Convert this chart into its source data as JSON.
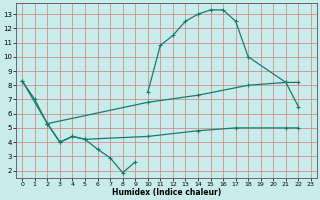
{
  "xlabel": "Humidex (Indice chaleur)",
  "bg_color": "#c8ecea",
  "grid_color": "#d08080",
  "line_color": "#1a7a6e",
  "xlim": [
    -0.5,
    23.5
  ],
  "ylim": [
    1.5,
    13.8
  ],
  "xticks": [
    0,
    1,
    2,
    3,
    4,
    5,
    6,
    7,
    8,
    9,
    10,
    11,
    12,
    13,
    14,
    15,
    16,
    17,
    18,
    19,
    20,
    21,
    22,
    23
  ],
  "yticks": [
    2,
    3,
    4,
    5,
    6,
    7,
    8,
    9,
    10,
    11,
    12,
    13
  ],
  "curve_arch_x": [
    10,
    11,
    12,
    13,
    14,
    15,
    16,
    17,
    18,
    21,
    22
  ],
  "curve_arch_y": [
    7.5,
    10.8,
    11.5,
    12.5,
    13.0,
    13.3,
    13.3,
    12.5,
    10.0,
    8.2,
    6.5
  ],
  "curve_diag_x": [
    0,
    1,
    2,
    10,
    14,
    18,
    21,
    22
  ],
  "curve_diag_y": [
    8.3,
    7.0,
    5.3,
    6.8,
    7.3,
    8.0,
    8.2,
    8.2
  ],
  "curve_dip_x": [
    2,
    3,
    4,
    5,
    6,
    7,
    8,
    9
  ],
  "curve_dip_y": [
    5.3,
    4.0,
    4.4,
    4.2,
    3.5,
    2.9,
    1.85,
    2.6
  ],
  "curve_flat_x": [
    0,
    2,
    3,
    4,
    5,
    10,
    14,
    17,
    21,
    22
  ],
  "curve_flat_y": [
    8.3,
    5.3,
    4.0,
    4.4,
    4.2,
    4.4,
    4.8,
    5.0,
    5.0,
    5.0
  ]
}
